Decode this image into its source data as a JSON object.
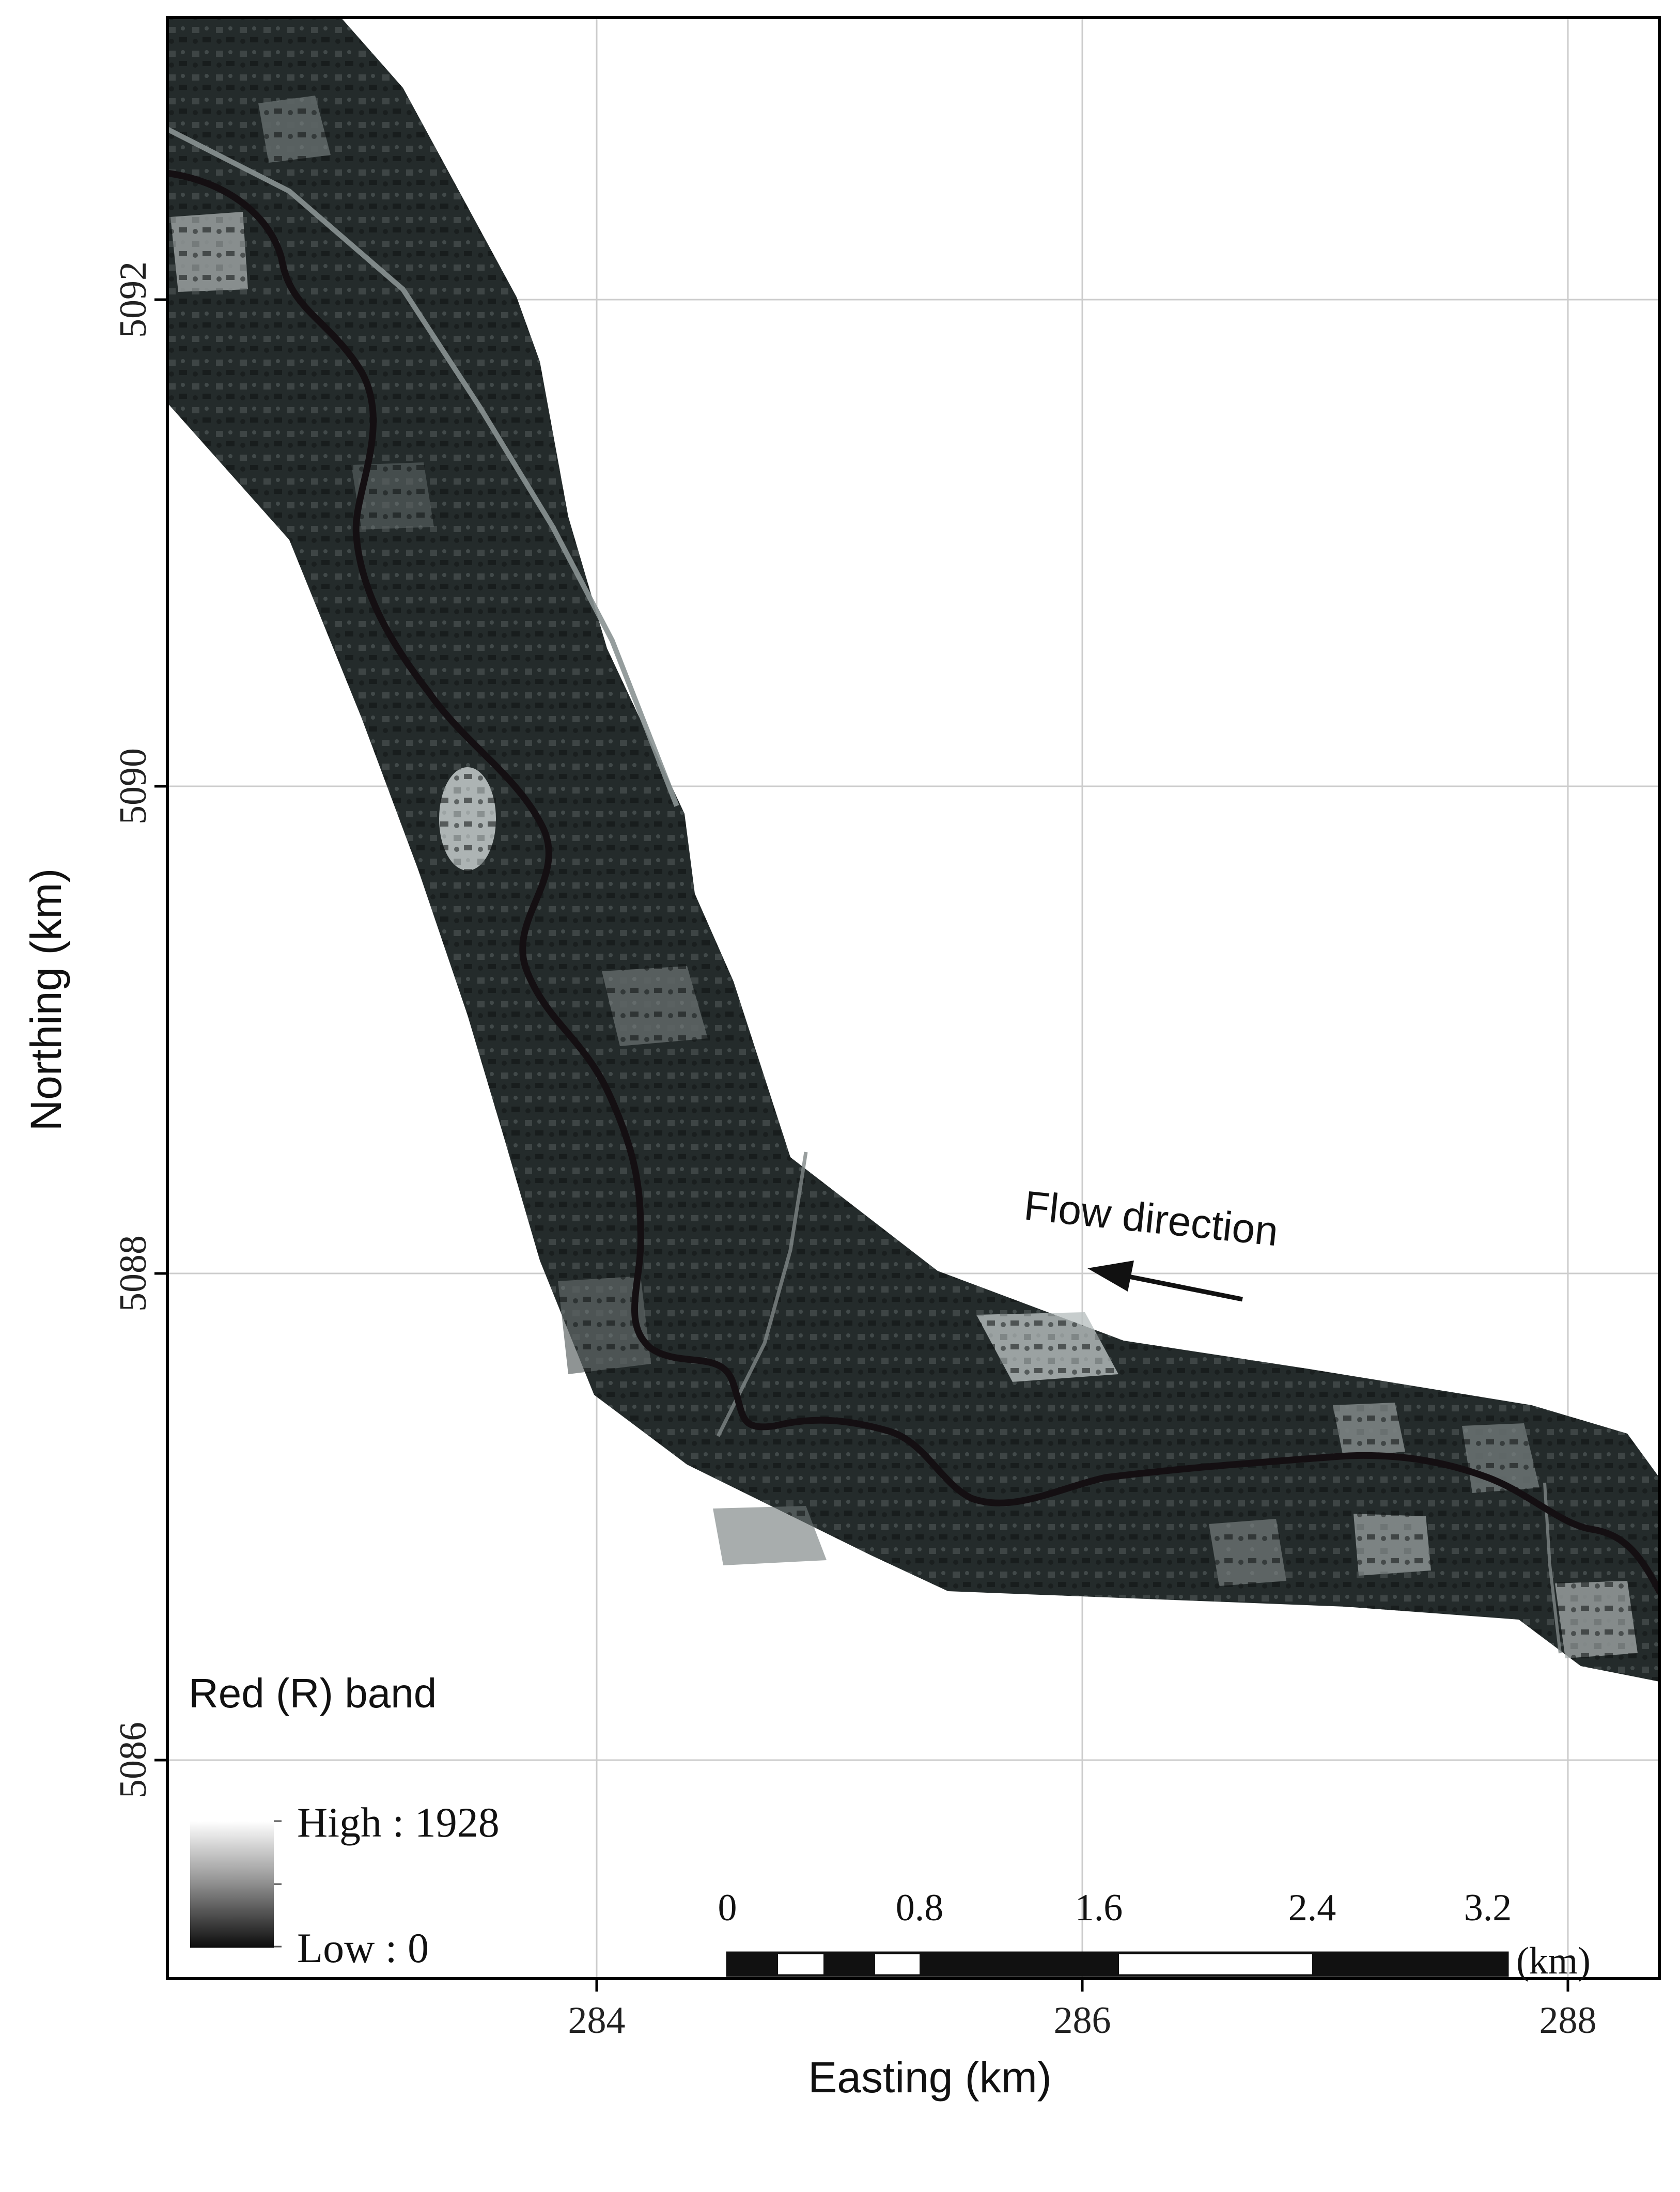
{
  "map": {
    "axes": {
      "x_label": "Easting (km)",
      "y_label": "Northing (km)",
      "x_ticks": [
        "284",
        "286",
        "288"
      ],
      "y_ticks": [
        "5086",
        "5088",
        "5090",
        "5092"
      ],
      "x_range_km": [
        282.24,
        288.38
      ],
      "y_range_km": [
        5084.75,
        5093.15
      ],
      "grid": true
    },
    "raster": {
      "band": "Red (R) band",
      "colormap": "grayscale"
    },
    "legend": {
      "title": "Red (R) band",
      "high_label": "High : 1928",
      "low_label": "Low : 0",
      "high_value": 1928,
      "low_value": 0,
      "placement": "bottom-left"
    },
    "annotation": {
      "flow_label": "Flow direction",
      "arrow_points": "west-northwest"
    },
    "scale_bar": {
      "labels": [
        "0",
        "0.8",
        "1.6",
        "2.4",
        "3.2"
      ],
      "unit_label": "(km)",
      "placement": "bottom-right"
    },
    "colors": {
      "frame": "#000000",
      "grid": "#cccccc",
      "raster_dark": "#1c2222",
      "raster_mid": "#4a5252",
      "river": "#140f12"
    }
  }
}
